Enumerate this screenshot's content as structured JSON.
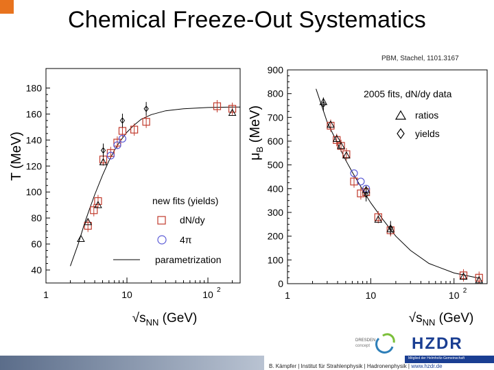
{
  "slide": {
    "title": "Chemical Freeze-Out Systematics",
    "citation": "PBM, Stachel, 1101.3167",
    "footer_author": "B. Kämpfer | Institut für Strahlenphysik | Hadronenphysik | ",
    "footer_url": "www.hzdr.de",
    "helmholtz_text": "Mitglied der Helmholtz-Gemeinschaft",
    "logo_dresden_line1": "DRESDEN",
    "logo_dresden_line2": "concept",
    "logo_hzdr": "HZDR",
    "colors": {
      "accent": "#e8731e",
      "brand_blue": "#1a3e92",
      "marker_red": "#c0392b",
      "marker_blue": "#5a5ad6"
    }
  },
  "chart_data": [
    {
      "type": "scatter",
      "xscale": "log",
      "xlim": [
        1,
        250
      ],
      "ylim": [
        30,
        195
      ],
      "yticks": [
        40,
        60,
        80,
        100,
        120,
        140,
        160,
        180
      ],
      "xtick_labels": [
        "1",
        "10",
        "10"
      ],
      "xtick_exponent": "2",
      "xlabel": "√sNN (GeV)",
      "xlabel_main": "√s",
      "xlabel_sub": "NN",
      "xlabel_unit": "(GeV)",
      "ylabel": "T (MeV)",
      "legend": {
        "title": "new fits (yields)",
        "entries": [
          {
            "label": "dN/dy",
            "marker": "square-red"
          },
          {
            "label": "4π",
            "marker": "circle-blue"
          },
          {
            "label": "parametrization",
            "marker": "line"
          }
        ]
      },
      "series": [
        {
          "name": "dN/dy",
          "x": [
            3.3,
            3.9,
            4.4,
            5.1,
            6.3,
            7.6,
            8.8,
            12.3,
            17.3,
            130,
            200
          ],
          "y": [
            74,
            86,
            93,
            125,
            130,
            138,
            147,
            148,
            154,
            166,
            164
          ]
        },
        {
          "name": "4π",
          "x": [
            6.3,
            7.6,
            8.8
          ],
          "y": [
            128,
            136,
            141
          ]
        },
        {
          "name": "triangle",
          "x": [
            2.7,
            3.3,
            4.4,
            5.1,
            200
          ],
          "y": [
            64,
            77,
            90,
            123,
            161
          ]
        },
        {
          "name": "diamond",
          "x": [
            5.1,
            8.8,
            17.3
          ],
          "y": [
            132,
            155,
            164
          ]
        },
        {
          "name": "parametrization",
          "x": [
            2,
            2.5,
            3,
            3.5,
            4,
            5,
            6,
            7,
            8,
            10,
            12,
            15,
            20,
            30,
            50,
            100,
            200,
            250
          ],
          "y": [
            43,
            60,
            76,
            88,
            98,
            113,
            124,
            132,
            138,
            146,
            151,
            156,
            159.5,
            162.5,
            164,
            165,
            165.3,
            165.3
          ]
        }
      ]
    },
    {
      "type": "scatter",
      "xscale": "log",
      "xlim": [
        1,
        250
      ],
      "ylim": [
        0,
        900
      ],
      "yticks": [
        0,
        100,
        200,
        300,
        400,
        500,
        600,
        700,
        800,
        900
      ],
      "xtick_labels": [
        "1",
        "10",
        "10"
      ],
      "xtick_exponent": "2",
      "xlabel": "√sNN (GeV)",
      "xlabel_main": "√s",
      "xlabel_sub": "NN",
      "xlabel_unit": "(GeV)",
      "ylabel": "μB (MeV)",
      "ylabel_mu": "μ",
      "ylabel_sub": "B",
      "ylabel_unit": "(MeV)",
      "legend": {
        "title": "2005 fits, dN/dy data",
        "entries": [
          {
            "label": "ratios",
            "marker": "triangle"
          },
          {
            "label": "yields",
            "marker": "diamond"
          }
        ]
      },
      "series": [
        {
          "name": "square",
          "x": [
            3.3,
            3.9,
            4.4,
            5.1,
            6.3,
            7.6,
            8.8,
            12.3,
            17.3,
            130,
            200
          ],
          "y": [
            665,
            605,
            580,
            545,
            430,
            380,
            385,
            280,
            225,
            35,
            25
          ]
        },
        {
          "name": "circle",
          "x": [
            6.3,
            7.6,
            8.8
          ],
          "y": [
            465,
            430,
            400
          ]
        },
        {
          "name": "triangle",
          "x": [
            2.7,
            3.3,
            3.9,
            4.4,
            5.1,
            8.8,
            12.3,
            17.3,
            130,
            200
          ],
          "y": [
            765,
            670,
            610,
            580,
            540,
            395,
            270,
            230,
            30,
            15
          ]
        },
        {
          "name": "diamond",
          "x": [
            2.7,
            8.8,
            17.3
          ],
          "y": [
            755,
            375,
            235
          ]
        },
        {
          "name": "parametrization",
          "x": [
            2.2,
            3,
            4,
            5,
            6,
            8,
            10,
            14,
            20,
            30,
            50,
            100,
            200
          ],
          "y": [
            820,
            680,
            590,
            520,
            470,
            395,
            340,
            270,
            200,
            140,
            85,
            45,
            23
          ]
        }
      ]
    }
  ]
}
